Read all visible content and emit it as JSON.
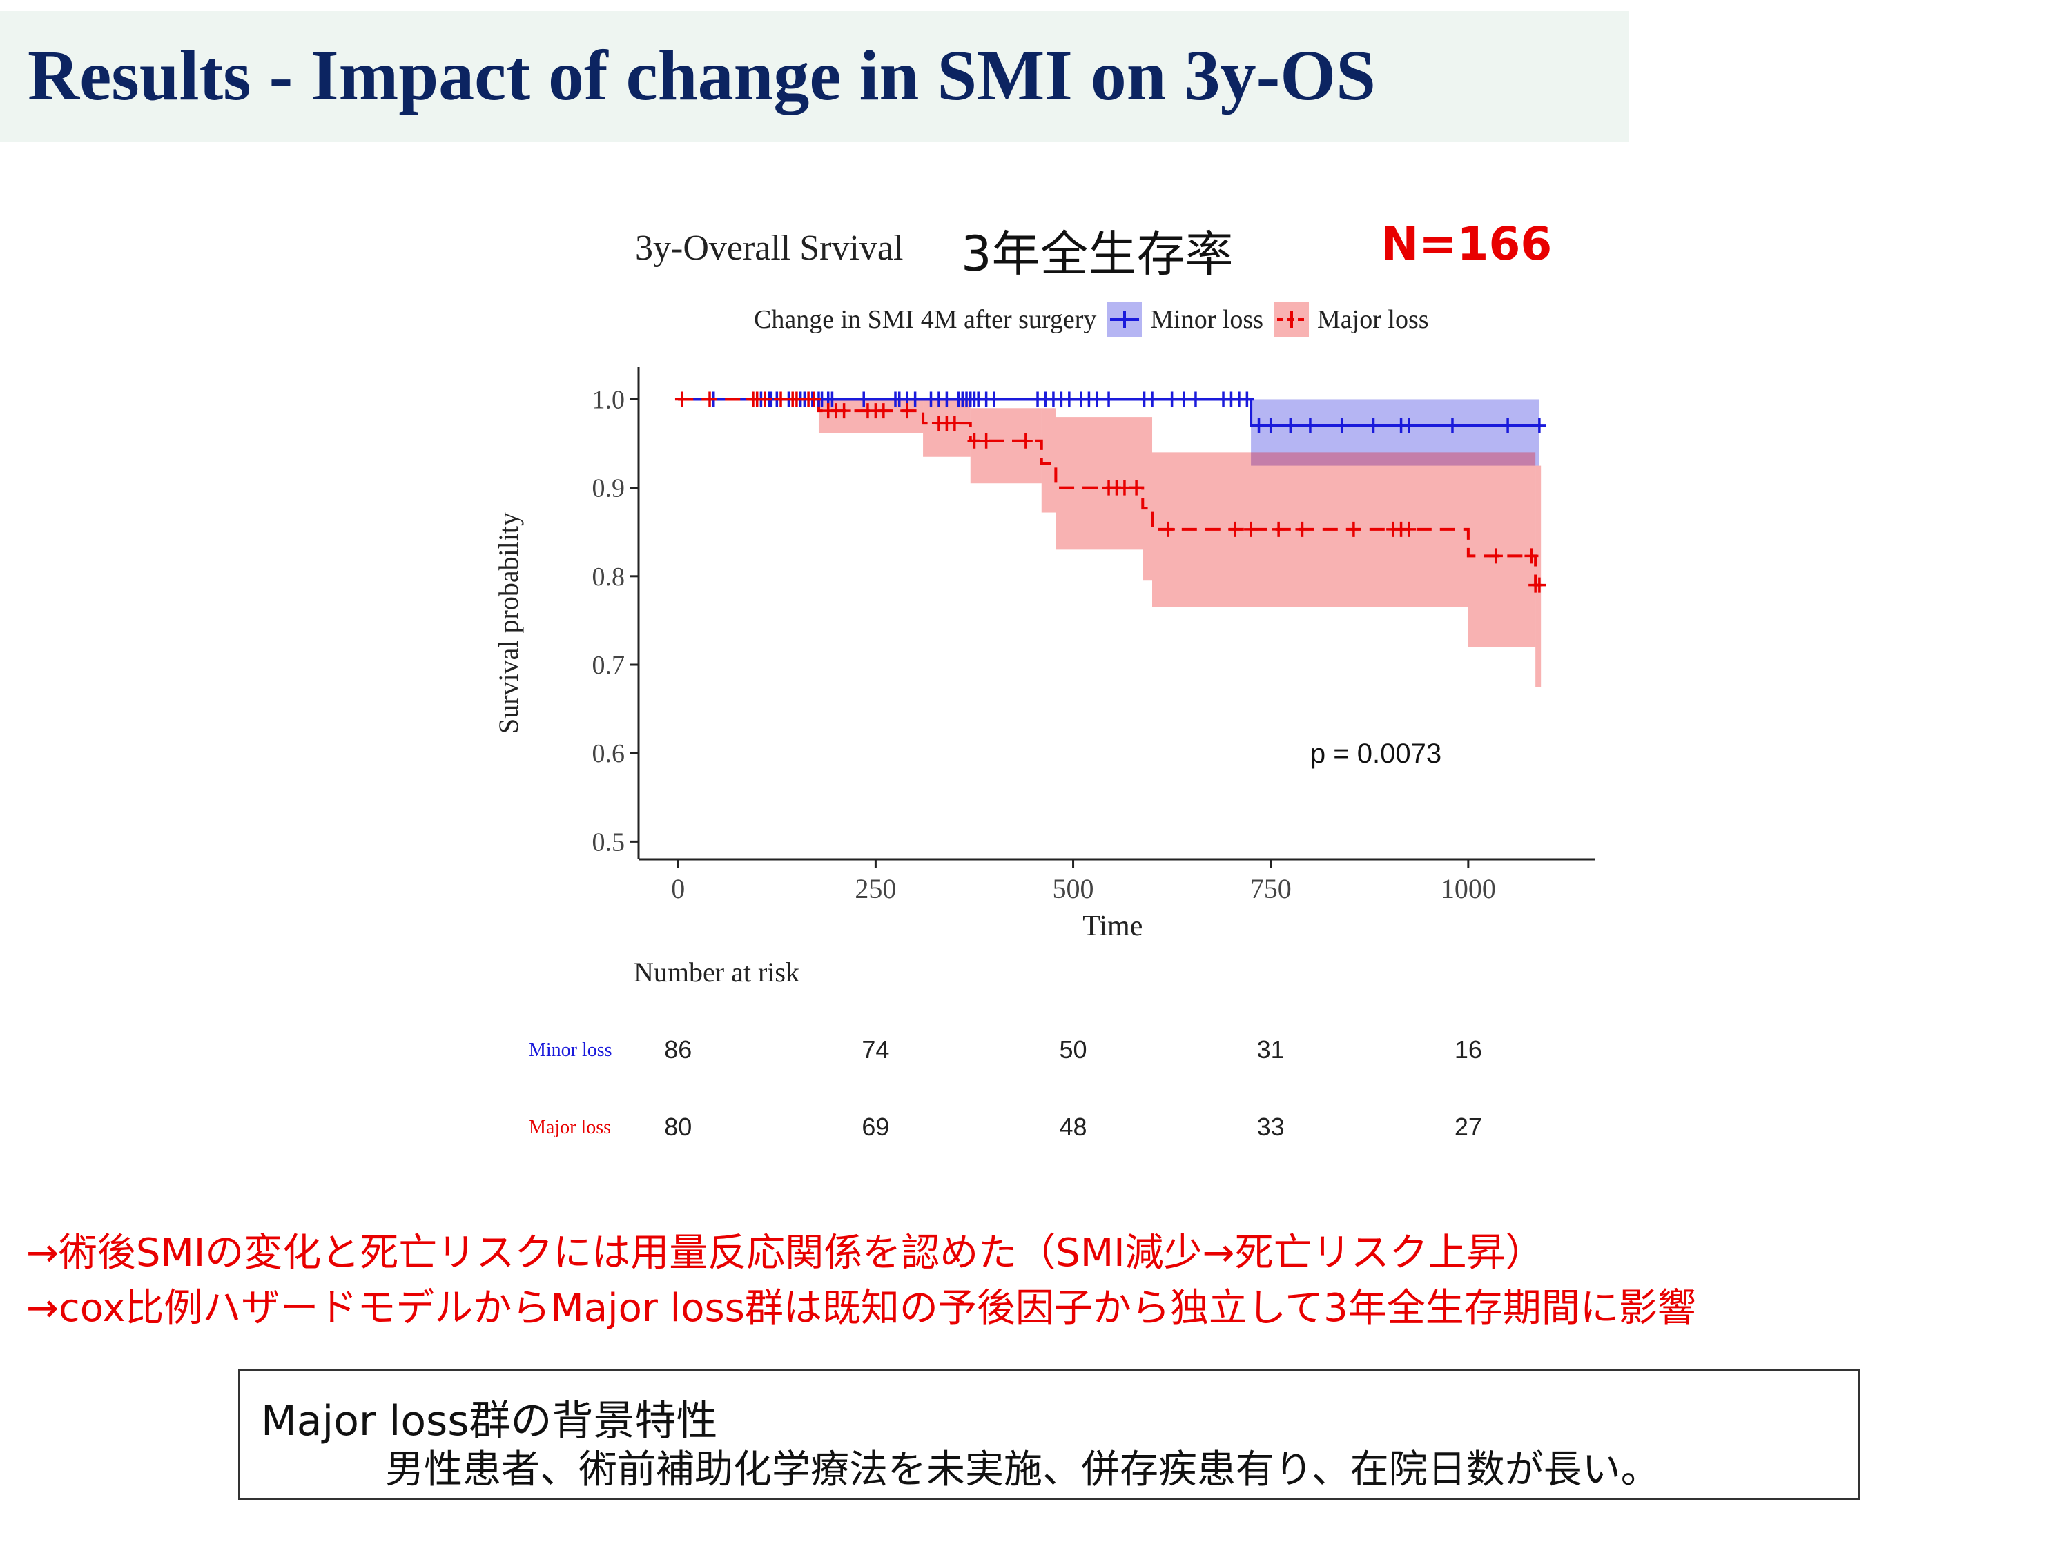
{
  "slide": {
    "title": "Results - Impact of change in SMI on 3y-OS"
  },
  "chart_header": {
    "title": "3y-Overall Srvival",
    "japanese_title": "3年全生存率",
    "n_label": "N=166"
  },
  "legend": {
    "title": "Change in SMI 4M after surgery",
    "items": [
      {
        "label": "Minor loss",
        "color": "#1a1adb"
      },
      {
        "label": "Major loss",
        "color": "#e80000"
      }
    ]
  },
  "chart_data": {
    "type": "line",
    "subtype": "kaplan-meier",
    "xlabel": "Time",
    "ylabel": "Survival probability",
    "xlim": [
      -50,
      1160
    ],
    "ylim": [
      0.48,
      1.03
    ],
    "xticks": [
      0,
      250,
      500,
      750,
      1000
    ],
    "yticks": [
      0.5,
      0.6,
      0.7,
      0.8,
      0.9,
      1.0
    ],
    "grid": false,
    "legend_position": "top",
    "pvalue_label": "p = 0.0073",
    "series": [
      {
        "name": "Minor loss",
        "color": "#1a1adb",
        "linestyle": "solid",
        "steps": [
          [
            0,
            1.0
          ],
          [
            725,
            0.97
          ]
        ],
        "end_time": 1090,
        "ci_steps": [
          [
            725,
            0.925,
            1.0
          ]
        ],
        "ci_end": 1090,
        "censor_times": [
          45,
          105,
          115,
          118,
          125,
          140,
          155,
          160,
          170,
          178,
          182,
          190,
          195,
          235,
          275,
          280,
          290,
          300,
          320,
          330,
          340,
          355,
          360,
          365,
          370,
          375,
          380,
          390,
          400,
          455,
          465,
          475,
          485,
          495,
          510,
          520,
          530,
          545,
          590,
          600,
          625,
          640,
          655,
          690,
          700,
          710,
          720,
          735,
          750,
          775,
          800,
          840,
          880,
          915,
          925,
          980,
          1050,
          1090
        ]
      },
      {
        "name": "Major loss",
        "color": "#e80000",
        "linestyle": "dashed",
        "steps": [
          [
            0,
            1.0
          ],
          [
            178,
            0.987
          ],
          [
            310,
            0.973
          ],
          [
            370,
            0.953
          ],
          [
            460,
            0.927
          ],
          [
            478,
            0.9
          ],
          [
            588,
            0.877
          ],
          [
            600,
            0.853
          ],
          [
            1000,
            0.823
          ],
          [
            1085,
            0.79
          ]
        ],
        "end_time": 1092,
        "ci_steps": [
          [
            178,
            0.962,
            1.0
          ],
          [
            310,
            0.935,
            1.0
          ],
          [
            370,
            0.905,
            0.99
          ],
          [
            460,
            0.872,
            0.99
          ],
          [
            478,
            0.83,
            0.98
          ],
          [
            588,
            0.795,
            0.98
          ],
          [
            600,
            0.765,
            0.94
          ],
          [
            1000,
            0.72,
            0.94
          ],
          [
            1085,
            0.675,
            0.925
          ]
        ],
        "ci_end": 1092,
        "censor_times": [
          5,
          40,
          95,
          100,
          110,
          130,
          145,
          150,
          165,
          172,
          190,
          200,
          210,
          240,
          250,
          260,
          290,
          330,
          340,
          350,
          375,
          390,
          440,
          545,
          555,
          565,
          580,
          620,
          705,
          725,
          760,
          790,
          855,
          905,
          915,
          925,
          1035,
          1080,
          1085,
          1090
        ]
      }
    ]
  },
  "risk_table": {
    "title": "Number at risk",
    "times": [
      0,
      250,
      500,
      750,
      1000
    ],
    "rows": [
      {
        "label": "Minor loss",
        "color": "#1a1adb",
        "counts": [
          "86",
          "74",
          "50",
          "31",
          "16"
        ]
      },
      {
        "label": "Major loss",
        "color": "#e80000",
        "counts": [
          "80",
          "69",
          "48",
          "33",
          "27"
        ]
      }
    ]
  },
  "conclusions": [
    "→術後SMIの変化と死亡リスクには用量反応関係を認めた（SMI減少→死亡リスク上昇）",
    "→cox比例ハザードモデルからMajor loss群は既知の予後因子から独立して3年全生存期間に影響"
  ],
  "background_box": {
    "heading": "Major loss群の背景特性",
    "body": "男性患者、術前補助化学療法を未実施、併存疾患有り、在院日数が長い。"
  }
}
